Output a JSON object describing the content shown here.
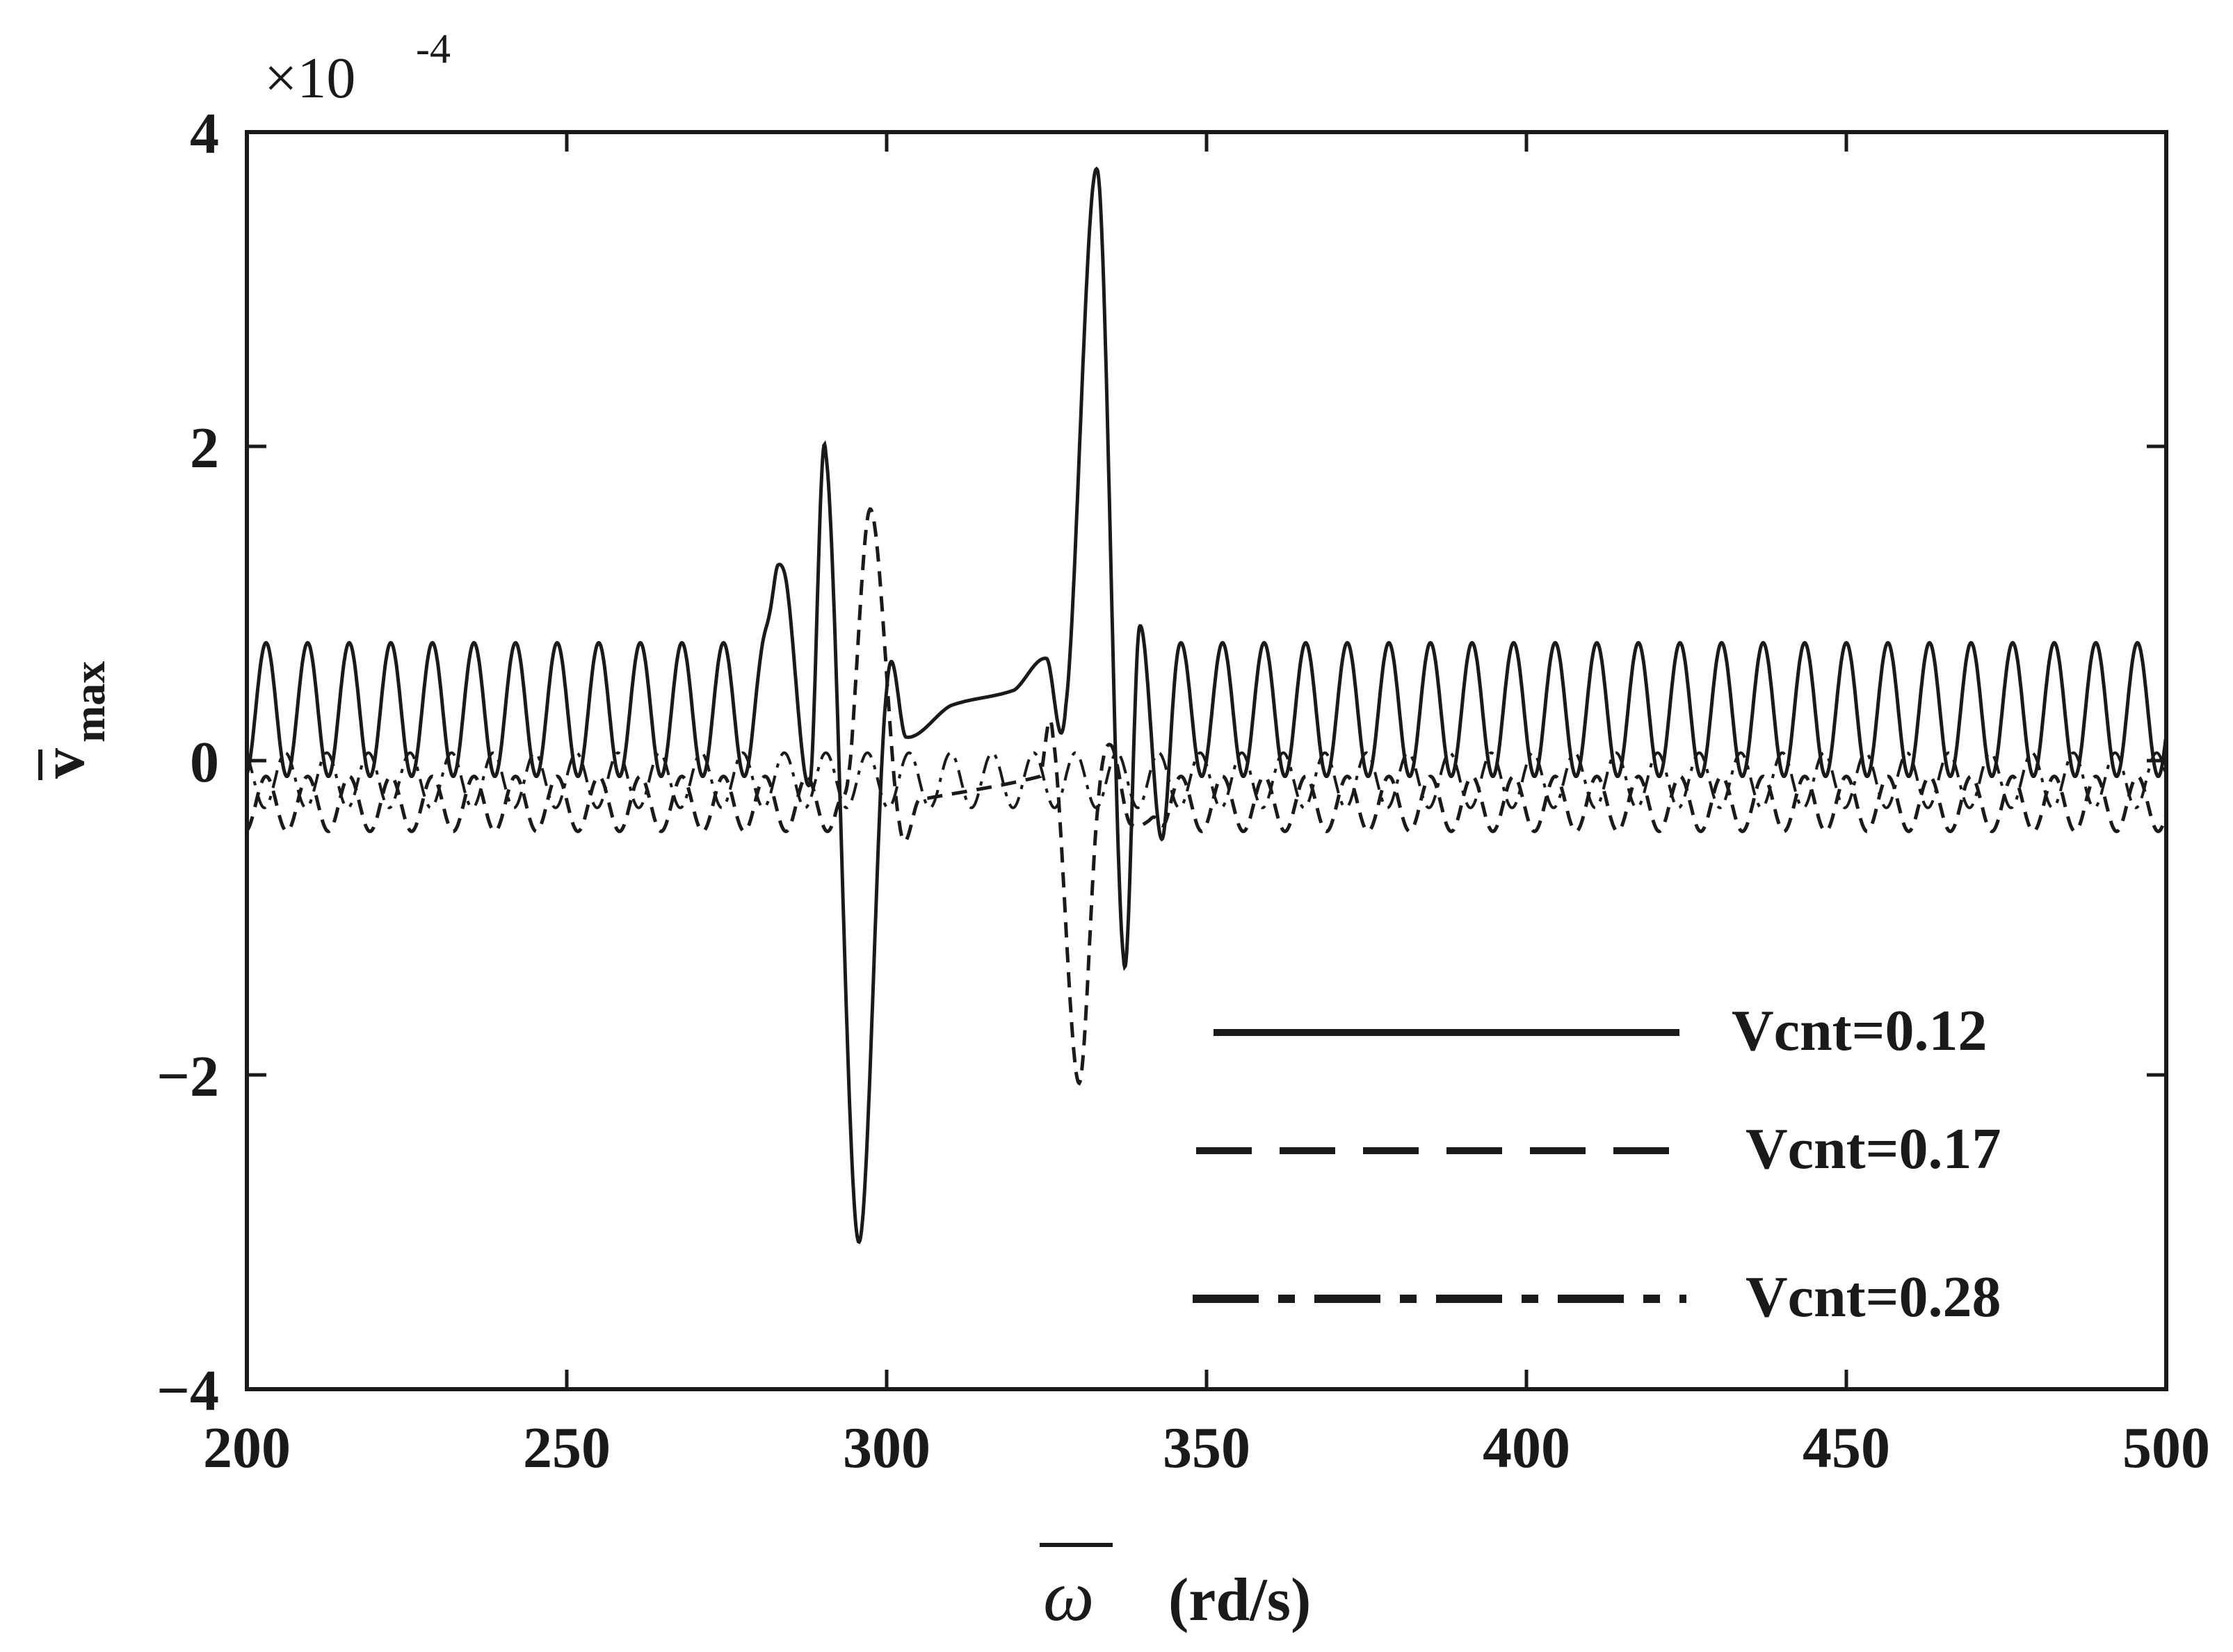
{
  "chart_data": {
    "type": "line",
    "title": "",
    "xlabel": "(rd/s)",
    "xlabel_symbol": "ω",
    "ylabel": "v",
    "ylabel_subscript": "max",
    "y_multiplier": "×10",
    "y_multiplier_exp": "-4",
    "xlim": [
      200,
      500
    ],
    "ylim": [
      -4,
      4
    ],
    "xticks": [
      200,
      250,
      300,
      350,
      400,
      450,
      500
    ],
    "yticks": [
      -4,
      -2,
      0,
      2,
      4
    ],
    "xtick_labels": [
      "200",
      "250",
      "300",
      "350",
      "400",
      "450",
      "500"
    ],
    "ytick_labels": [
      "−4",
      "−2",
      "0",
      "2",
      "4"
    ],
    "legend_position": "lower-right",
    "series": [
      {
        "name": "Vcnt=0.12",
        "style": "solid",
        "baseline_oscillation": {
          "low": -0.1,
          "high": 0.75,
          "period": 6.5
        },
        "key_points": [
          {
            "x": 280,
            "y": 0.95
          },
          {
            "x": 284,
            "y": 1.2
          },
          {
            "x": 288,
            "y": -0.15
          },
          {
            "x": 290.5,
            "y": 1.95
          },
          {
            "x": 295.5,
            "y": -3.05
          },
          {
            "x": 300,
            "y": 0.45
          },
          {
            "x": 303,
            "y": 0.15
          },
          {
            "x": 310,
            "y": 0.35
          },
          {
            "x": 320,
            "y": 0.45
          },
          {
            "x": 325,
            "y": 0.65
          },
          {
            "x": 328,
            "y": 0.35
          },
          {
            "x": 333,
            "y": 3.75
          },
          {
            "x": 337,
            "y": -1.25
          },
          {
            "x": 339.5,
            "y": 0.85
          },
          {
            "x": 343,
            "y": -0.5
          },
          {
            "x": 346,
            "y": 0.75
          }
        ]
      },
      {
        "name": "Vcnt=0.17",
        "style": "dashed",
        "baseline_oscillation": {
          "low": -0.45,
          "high": -0.1,
          "period": 6.5
        },
        "key_points": [
          {
            "x": 292,
            "y": -0.5
          },
          {
            "x": 294,
            "y": -0.1
          },
          {
            "x": 297.5,
            "y": 1.6
          },
          {
            "x": 302,
            "y": -0.4
          },
          {
            "x": 305,
            "y": -0.25
          },
          {
            "x": 324,
            "y": -0.1
          },
          {
            "x": 326,
            "y": 0.15
          },
          {
            "x": 330,
            "y": -2.05
          },
          {
            "x": 333,
            "y": -0.3
          },
          {
            "x": 335,
            "y": 0.1
          },
          {
            "x": 338,
            "y": -0.4
          },
          {
            "x": 344,
            "y": -0.3
          }
        ]
      },
      {
        "name": "Vcnt=0.28",
        "style": "dashdot",
        "baseline_oscillation": {
          "low": -0.3,
          "high": 0.05,
          "period": 6.5
        },
        "key_points": []
      }
    ]
  }
}
